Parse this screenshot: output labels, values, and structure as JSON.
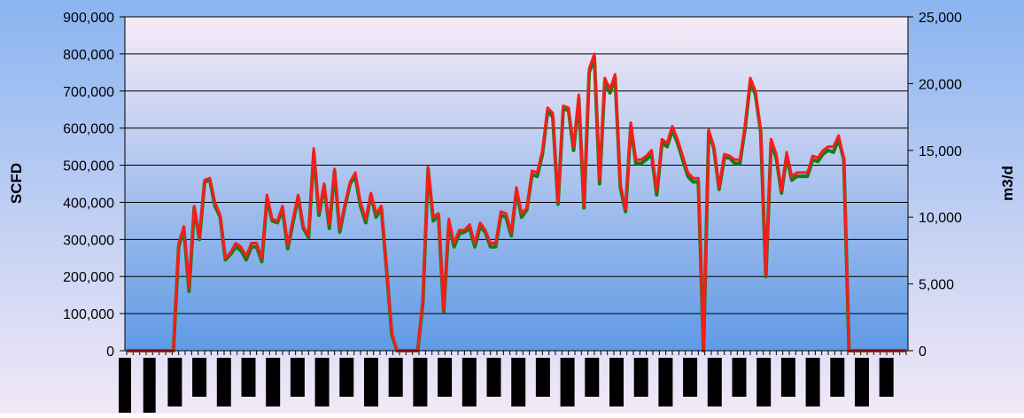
{
  "chart_data": {
    "type": "line",
    "title": "",
    "ylabel_left": "SCFD",
    "ylabel_right": "m3/d",
    "ylim_left": [
      0,
      900000
    ],
    "ylim_right": [
      0,
      25000
    ],
    "left_ticks": [
      "0",
      "100,000",
      "200,000",
      "300,000",
      "400,000",
      "500,000",
      "600,000",
      "700,000",
      "800,000",
      "900,000"
    ],
    "right_ticks": [
      "0",
      "5,000",
      "10,000",
      "15,000",
      "20,000",
      "25,000"
    ],
    "grid": true,
    "legend": "none",
    "x_tick_count": 121,
    "series": [
      {
        "color": "#1a7a1a",
        "values": [
          0,
          0,
          0,
          0,
          0,
          0,
          0,
          0,
          0,
          0,
          280000,
          330000,
          160000,
          385000,
          300000,
          455000,
          460000,
          390000,
          360000,
          245000,
          260000,
          280000,
          270000,
          245000,
          280000,
          280000,
          240000,
          410000,
          350000,
          345000,
          380000,
          275000,
          345000,
          415000,
          330000,
          305000,
          535000,
          365000,
          445000,
          330000,
          485000,
          320000,
          390000,
          450000,
          470000,
          390000,
          345000,
          420000,
          360000,
          385000,
          220000,
          45000,
          0,
          0,
          0,
          0,
          0,
          130000,
          490000,
          350000,
          365000,
          105000,
          345000,
          280000,
          315000,
          320000,
          330000,
          280000,
          335000,
          320000,
          280000,
          280000,
          365000,
          360000,
          310000,
          430000,
          360000,
          380000,
          475000,
          470000,
          530000,
          645000,
          630000,
          395000,
          650000,
          650000,
          540000,
          680000,
          385000,
          750000,
          790000,
          450000,
          725000,
          695000,
          735000,
          440000,
          375000,
          605000,
          505000,
          505000,
          515000,
          530000,
          420000,
          560000,
          550000,
          595000,
          560000,
          515000,
          470000,
          455000,
          455000,
          0,
          590000,
          545000,
          435000,
          520000,
          520000,
          505000,
          505000,
          600000,
          725000,
          690000,
          590000,
          200000,
          560000,
          520000,
          425000,
          525000,
          460000,
          470000,
          470000,
          470000,
          515000,
          510000,
          530000,
          540000,
          535000,
          570000,
          515000,
          0,
          0,
          0,
          0,
          0,
          0,
          0,
          0,
          0,
          0,
          0,
          0
        ]
      },
      {
        "color": "#ff1a1a",
        "values": [
          0,
          0,
          0,
          0,
          0,
          0,
          0,
          0,
          0,
          0,
          290000,
          335000,
          170000,
          390000,
          305000,
          460000,
          465000,
          400000,
          365000,
          250000,
          265000,
          290000,
          280000,
          255000,
          290000,
          290000,
          250000,
          420000,
          355000,
          350000,
          390000,
          285000,
          355000,
          420000,
          335000,
          310000,
          545000,
          375000,
          450000,
          340000,
          490000,
          330000,
          395000,
          455000,
          480000,
          400000,
          355000,
          425000,
          370000,
          390000,
          220000,
          50000,
          0,
          0,
          0,
          0,
          0,
          140000,
          495000,
          360000,
          370000,
          110000,
          355000,
          290000,
          325000,
          325000,
          340000,
          290000,
          345000,
          325000,
          290000,
          290000,
          375000,
          370000,
          320000,
          440000,
          370000,
          385000,
          485000,
          480000,
          540000,
          655000,
          640000,
          400000,
          660000,
          655000,
          550000,
          690000,
          390000,
          760000,
          800000,
          460000,
          735000,
          705000,
          745000,
          450000,
          380000,
          615000,
          515000,
          515000,
          525000,
          540000,
          430000,
          570000,
          560000,
          605000,
          570000,
          525000,
          480000,
          465000,
          465000,
          0,
          595000,
          550000,
          440000,
          530000,
          525000,
          515000,
          515000,
          610000,
          735000,
          700000,
          595000,
          205000,
          570000,
          530000,
          430000,
          535000,
          470000,
          480000,
          480000,
          480000,
          525000,
          520000,
          540000,
          550000,
          550000,
          580000,
          520000,
          0,
          0,
          0,
          0,
          0,
          0,
          0,
          0,
          0,
          0,
          0,
          0
        ]
      }
    ]
  },
  "colors": {
    "page_bg_top": "#8ab4f0",
    "page_bg_bottom": "#f2e8f7",
    "plot_bg_top": "#f6ebf6",
    "plot_bg_bottom": "#5f9ae6",
    "gridline": "#000000",
    "axis": "#000000",
    "text": "#000000"
  }
}
